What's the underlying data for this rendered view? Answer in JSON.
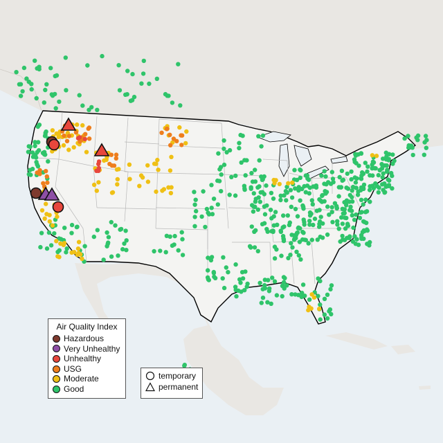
{
  "legend": {
    "title": "Air Quality Index",
    "categories": [
      {
        "key": "hazardous",
        "label": "Hazardous",
        "color": "#7e3a2e"
      },
      {
        "key": "very_unhealthy",
        "label": "Very Unhealthy",
        "color": "#8e4fa6"
      },
      {
        "key": "unhealthy",
        "label": "Unhealthy",
        "color": "#e8473c"
      },
      {
        "key": "usg",
        "label": "USG",
        "color": "#ee7e1d"
      },
      {
        "key": "moderate",
        "label": "Moderate",
        "color": "#efc015"
      },
      {
        "key": "good",
        "label": "Good",
        "color": "#2fc46a"
      }
    ],
    "monitor_types": [
      {
        "key": "temporary",
        "label": "temporary",
        "shape": "circle-outline-icon"
      },
      {
        "key": "permanent",
        "label": "permanent",
        "shape": "triangle-outline-icon"
      }
    ]
  },
  "colors": {
    "water": "#eaf0f4",
    "land": "#e9e7e3",
    "us_land": "#f4f4f2",
    "border": "#000000",
    "state_line": "#b8b8b8"
  }
}
